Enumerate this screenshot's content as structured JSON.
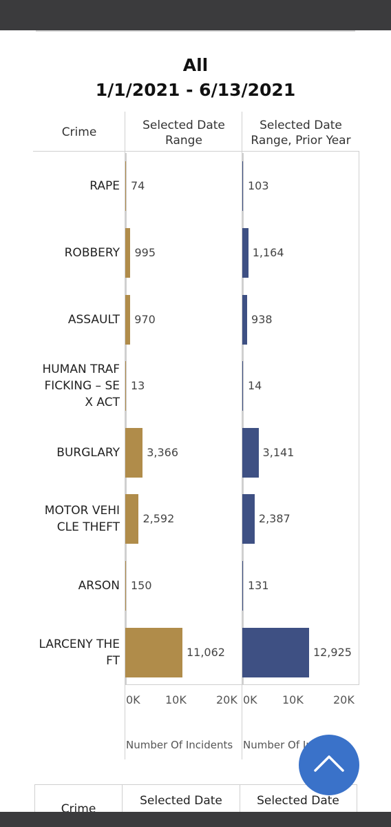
{
  "chart_data": {
    "type": "bar",
    "orientation": "horizontal",
    "title": "All",
    "subtitle": "1/1/2021 - 6/13/2021",
    "category_header": "Crime",
    "categories": [
      "RAPE",
      "ROBBERY",
      "ASSAULT",
      "HUMAN TRAF FICKING – SE X ACT",
      "BURGLARY",
      "MOTOR VEHI CLE THEFT",
      "ARSON",
      "LARCENY THE FT"
    ],
    "category_lines": [
      [
        "RAPE"
      ],
      [
        "ROBBERY"
      ],
      [
        "ASSAULT"
      ],
      [
        "HUMAN TRAF",
        "FICKING – SE",
        "X ACT"
      ],
      [
        "BURGLARY"
      ],
      [
        "MOTOR VEHI",
        "CLE THEFT"
      ],
      [
        "ARSON"
      ],
      [
        "LARCENY THE",
        "FT"
      ]
    ],
    "series": [
      {
        "name": "Selected Date Range",
        "header_lines": [
          "Selected Date",
          "Range"
        ],
        "color": "#b08c4a",
        "values": [
          74,
          995,
          970,
          13,
          3366,
          2592,
          150,
          11062
        ],
        "labels": [
          "74",
          "995",
          "970",
          "13",
          "3,366",
          "2,592",
          "150",
          "11,062"
        ]
      },
      {
        "name": "Selected Date Range, Prior Year",
        "header_lines": [
          "Selected Date",
          "Range, Prior Year"
        ],
        "color": "#3e5083",
        "values": [
          103,
          1164,
          938,
          14,
          3141,
          2387,
          131,
          12925
        ],
        "labels": [
          "103",
          "1,164",
          "938",
          "14",
          "3,141",
          "2,387",
          "131",
          "12,925"
        ]
      }
    ],
    "xlim": [
      0,
      20000
    ],
    "xticks": [
      "0K",
      "10K",
      "20K"
    ],
    "xlabel": "Number Of Incidents"
  },
  "table2": {
    "crime_header": "Crime",
    "col1_header": "Selected Date",
    "col2_header": "Selected Date"
  },
  "scroll_button": {
    "icon": "chevron-up-icon",
    "color": "#3a72c9"
  }
}
